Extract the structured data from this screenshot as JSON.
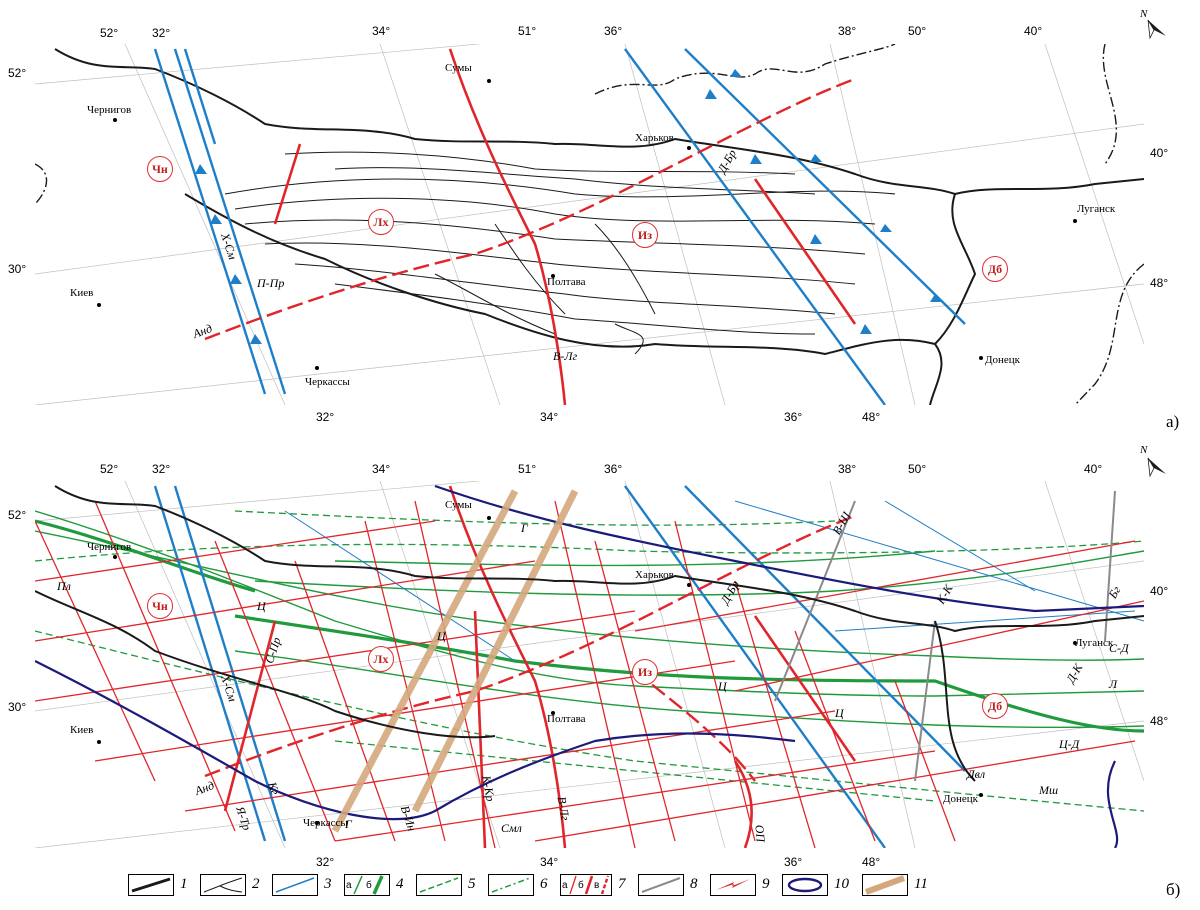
{
  "panels": [
    {
      "label": "а)",
      "coords_top": [
        "52°",
        "32°",
        "34°",
        "51°",
        "36°",
        "38°",
        "50°",
        "40°"
      ],
      "coords_bottom": [
        "32°",
        "34°",
        "36°",
        "48°"
      ],
      "coords_left": [
        "52°",
        "30°"
      ],
      "coords_right": [
        "40°",
        "48°"
      ],
      "north": "N",
      "cities": [
        "Чернигов",
        "Сумы",
        "Харьков",
        "Луганск",
        "Киев",
        "Полтава",
        "Донецк",
        "Черкассы"
      ],
      "regions": [
        "Чн",
        "Лх",
        "Из",
        "Дб"
      ],
      "faults": [
        "Х-См",
        "П-Пр",
        "Анд",
        "В-Лг",
        "Д-Бр"
      ]
    },
    {
      "label": "б)",
      "coords_top": [
        "52°",
        "32°",
        "34°",
        "51°",
        "36°",
        "38°",
        "50°",
        "40°"
      ],
      "coords_bottom": [
        "32°",
        "34°",
        "36°",
        "48°"
      ],
      "coords_left": [
        "52°",
        "30°"
      ],
      "coords_right": [
        "40°",
        "48°"
      ],
      "north": "N",
      "cities": [
        "Чернигов",
        "Сумы",
        "Харьков",
        "Луганск",
        "Киев",
        "Полтава",
        "Донецк",
        "Черкассы"
      ],
      "regions": [
        "Чн",
        "Лх",
        "Из",
        "Дб"
      ],
      "faults": [
        "Х-См",
        "С-Пр",
        "Ц",
        "Ц",
        "Ц",
        "Ц",
        "Г",
        "Г",
        "Анд",
        "Я-Тр",
        "Кг",
        "В-Ин",
        "К-Кр",
        "Смл",
        "В-Лг",
        "Д-Бр",
        "В-Ш",
        "К-К",
        "Бг",
        "С-Д",
        "Д-К",
        "Л",
        "Ц-Д",
        "Двл",
        "Мш",
        "ОП",
        "Пл"
      ]
    }
  ],
  "legend": {
    "items": [
      "1",
      "2",
      "3",
      "4",
      "5",
      "6",
      "7",
      "8",
      "9",
      "10",
      "11"
    ],
    "sub_4": [
      "а",
      "б"
    ],
    "sub_7": [
      "а",
      "б",
      "в"
    ]
  },
  "colors": {
    "boundary": "#1a1a1a",
    "fault_blue": "#1e7fc8",
    "fault_red": "#e0262b",
    "fault_green": "#1f9a3c",
    "grey": "#8a8a8a",
    "navy": "#1c1a7a",
    "tan": "#d4a77c"
  }
}
